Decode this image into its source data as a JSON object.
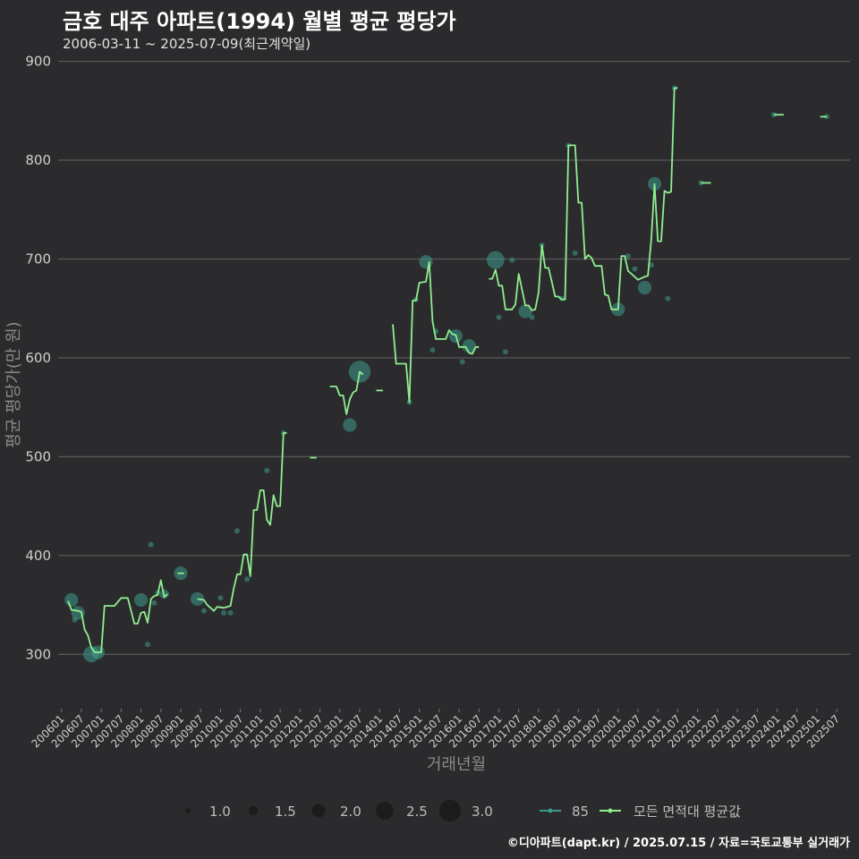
{
  "title": "금호 대주 아파트(1994) 월별 평균 평당가",
  "subtitle": "2006-03-11 ~ 2025-07-09(최근계약일)",
  "footer": "©디아파트(dapt.kr) / 2025.07.15 / 자료=국토교통부 실거래가",
  "colors": {
    "background": "#2b2b2d",
    "line": "#90ee90",
    "points": "#3d9a8b",
    "grid": "#5a5a5a"
  },
  "chart_data": {
    "type": "line",
    "title": "금호 대주 아파트(1994) 월별 평균 평당가",
    "xlabel": "거래년월",
    "ylabel": "평균 평당가(만 원)",
    "ylim": [
      245,
      915
    ],
    "y_ticks": [
      300,
      400,
      500,
      600,
      700,
      800,
      900
    ],
    "x_ticks": [
      "200601",
      "200607",
      "200701",
      "200707",
      "200801",
      "200807",
      "200901",
      "200907",
      "201001",
      "201007",
      "201101",
      "201107",
      "201201",
      "201207",
      "201301",
      "201307",
      "201401",
      "201407",
      "201501",
      "201507",
      "201601",
      "201607",
      "201701",
      "201707",
      "201801",
      "201807",
      "201901",
      "201907",
      "202001",
      "202007",
      "202101",
      "202107",
      "202201",
      "202207",
      "202301",
      "202307",
      "202401",
      "202407",
      "202501",
      "202507"
    ],
    "size_legend": {
      "title": "",
      "values": [
        "1.0",
        "1.5",
        "2.0",
        "2.5",
        "3.0"
      ]
    },
    "series_legend": [
      "85",
      "모든 면적대 평균값"
    ],
    "line_series": {
      "name": "모든 면적대 평균값",
      "segments": [
        [
          [
            200603,
            354
          ],
          [
            200604,
            345
          ],
          [
            200606,
            344
          ],
          [
            200607,
            343
          ],
          [
            200608,
            325
          ],
          [
            200609,
            319
          ],
          [
            200610,
            307
          ],
          [
            200611,
            302
          ],
          [
            200701,
            302
          ],
          [
            200702,
            349
          ],
          [
            200703,
            349
          ],
          [
            200705,
            349
          ],
          [
            200706,
            353
          ],
          [
            200707,
            357
          ],
          [
            200709,
            357
          ],
          [
            200710,
            344
          ],
          [
            200711,
            331
          ],
          [
            200712,
            331
          ],
          [
            200801,
            342
          ],
          [
            200802,
            343
          ],
          [
            200803,
            332
          ],
          [
            200804,
            356
          ],
          [
            200805,
            359
          ],
          [
            200806,
            360
          ],
          [
            200807,
            375
          ],
          [
            200808,
            358
          ],
          [
            200809,
            361
          ]
        ],
        [
          [
            200812,
            382
          ],
          [
            200902,
            382
          ]
        ],
        [
          [
            200906,
            356
          ],
          [
            200908,
            355
          ],
          [
            200909,
            350
          ],
          [
            200910,
            347
          ],
          [
            200911,
            344
          ],
          [
            200912,
            348
          ],
          [
            201002,
            347
          ],
          [
            201003,
            348
          ],
          [
            201004,
            349
          ],
          [
            201005,
            367
          ],
          [
            201006,
            381
          ],
          [
            201007,
            381
          ],
          [
            201008,
            401
          ],
          [
            201009,
            401
          ],
          [
            201010,
            379
          ],
          [
            201011,
            446
          ],
          [
            201012,
            446
          ],
          [
            201101,
            466
          ],
          [
            201102,
            466
          ],
          [
            201103,
            436
          ],
          [
            201104,
            431
          ],
          [
            201105,
            461
          ],
          [
            201106,
            450
          ],
          [
            201107,
            450
          ],
          [
            201108,
            524
          ],
          [
            201109,
            524
          ]
        ],
        [
          [
            201204,
            499
          ],
          [
            201206,
            499
          ]
        ],
        [
          [
            201210,
            571
          ],
          [
            201212,
            571
          ],
          [
            201301,
            562
          ],
          [
            201302,
            562
          ],
          [
            201303,
            543
          ],
          [
            201304,
            558
          ],
          [
            201305,
            565
          ],
          [
            201306,
            567
          ],
          [
            201307,
            586
          ],
          [
            201308,
            583
          ]
        ],
        [
          [
            201312,
            567
          ],
          [
            201402,
            567
          ]
        ],
        [
          [
            201405,
            634
          ],
          [
            201406,
            594
          ],
          [
            201409,
            594
          ],
          [
            201410,
            555
          ],
          [
            201411,
            658
          ],
          [
            201412,
            658
          ],
          [
            201501,
            676
          ],
          [
            201503,
            677
          ],
          [
            201504,
            697
          ],
          [
            201505,
            637
          ],
          [
            201506,
            619
          ],
          [
            201509,
            619
          ],
          [
            201510,
            628
          ],
          [
            201511,
            624
          ],
          [
            201512,
            623
          ],
          [
            201601,
            611
          ],
          [
            201603,
            611
          ],
          [
            201604,
            605
          ],
          [
            201605,
            604
          ],
          [
            201606,
            611
          ],
          [
            201607,
            611
          ]
        ],
        [
          [
            201610,
            680
          ],
          [
            201611,
            680
          ],
          [
            201612,
            689
          ],
          [
            201701,
            673
          ],
          [
            201702,
            673
          ],
          [
            201703,
            649
          ],
          [
            201705,
            649
          ],
          [
            201706,
            654
          ],
          [
            201707,
            685
          ],
          [
            201708,
            669
          ],
          [
            201709,
            653
          ],
          [
            201710,
            653
          ],
          [
            201711,
            648
          ],
          [
            201712,
            649
          ],
          [
            201801,
            666
          ],
          [
            201802,
            714
          ],
          [
            201803,
            691
          ],
          [
            201804,
            691
          ],
          [
            201805,
            677
          ],
          [
            201806,
            662
          ],
          [
            201807,
            662
          ],
          [
            201808,
            659
          ],
          [
            201809,
            659
          ],
          [
            201810,
            815
          ],
          [
            201812,
            815
          ],
          [
            201901,
            757
          ],
          [
            201902,
            757
          ],
          [
            201903,
            700
          ],
          [
            201904,
            704
          ],
          [
            201905,
            701
          ],
          [
            201906,
            693
          ],
          [
            201908,
            693
          ],
          [
            201909,
            664
          ],
          [
            201910,
            663
          ],
          [
            201911,
            649
          ],
          [
            201912,
            649
          ],
          [
            202001,
            649
          ],
          [
            202002,
            703
          ],
          [
            202003,
            703
          ],
          [
            202004,
            688
          ],
          [
            202005,
            685
          ],
          [
            202006,
            682
          ],
          [
            202007,
            679
          ],
          [
            202009,
            682
          ],
          [
            202010,
            683
          ],
          [
            202011,
            719
          ],
          [
            202012,
            776
          ],
          [
            202101,
            718
          ],
          [
            202102,
            718
          ],
          [
            202103,
            769
          ],
          [
            202104,
            767
          ],
          [
            202105,
            768
          ],
          [
            202106,
            873
          ],
          [
            202107,
            873
          ]
        ],
        [
          [
            202202,
            777
          ],
          [
            202205,
            777
          ]
        ],
        [
          [
            202312,
            846
          ],
          [
            202403,
            846
          ]
        ],
        [
          [
            202502,
            844
          ],
          [
            202504,
            844
          ]
        ]
      ]
    },
    "point_series": {
      "name": "85",
      "points": [
        [
          200604,
          355,
          2.0
        ],
        [
          200606,
          342,
          2.0
        ],
        [
          200605,
          335,
          1.0
        ],
        [
          200610,
          300,
          2.3
        ],
        [
          200612,
          302,
          2.0
        ],
        [
          200801,
          355,
          2.0
        ],
        [
          200803,
          310,
          1.0
        ],
        [
          200804,
          411,
          1.0
        ],
        [
          200805,
          352,
          1.0
        ],
        [
          200806,
          362,
          1.0
        ],
        [
          200808,
          361,
          1.5
        ],
        [
          200901,
          382,
          2.0
        ],
        [
          200906,
          356,
          2.0
        ],
        [
          200908,
          344,
          1.0
        ],
        [
          201001,
          357,
          1.0
        ],
        [
          201002,
          342,
          1.0
        ],
        [
          201004,
          342,
          1.0
        ],
        [
          201006,
          425,
          1.0
        ],
        [
          201009,
          376,
          1.0
        ],
        [
          201103,
          486,
          1.0
        ],
        [
          201108,
          524,
          1.0
        ],
        [
          201304,
          532,
          2.0
        ],
        [
          201307,
          586,
          3.0
        ],
        [
          201410,
          555,
          1.0
        ],
        [
          201412,
          659,
          1.0
        ],
        [
          201503,
          697,
          2.0
        ],
        [
          201505,
          608,
          1.0
        ],
        [
          201506,
          627,
          1.0
        ],
        [
          201512,
          622,
          2.0
        ],
        [
          201602,
          596,
          1.0
        ],
        [
          201604,
          612,
          2.0
        ],
        [
          201612,
          699,
          2.5
        ],
        [
          201701,
          641,
          1.0
        ],
        [
          201703,
          606,
          1.0
        ],
        [
          201705,
          699,
          1.0
        ],
        [
          201709,
          647,
          2.0
        ],
        [
          201711,
          641,
          1.0
        ],
        [
          201802,
          714,
          1.0
        ],
        [
          201808,
          660,
          1.0
        ],
        [
          201810,
          815,
          1.0
        ],
        [
          201812,
          706,
          1.0
        ],
        [
          202001,
          649,
          2.0
        ],
        [
          202004,
          703,
          1.0
        ],
        [
          202006,
          690,
          1.0
        ],
        [
          202009,
          671,
          2.0
        ],
        [
          202011,
          694,
          1.0
        ],
        [
          202012,
          776,
          2.0
        ],
        [
          202104,
          660,
          1.0
        ],
        [
          202106,
          873,
          1.0
        ],
        [
          202202,
          777,
          1.0
        ],
        [
          202312,
          846,
          1.0
        ],
        [
          202504,
          844,
          1.0
        ]
      ]
    }
  }
}
